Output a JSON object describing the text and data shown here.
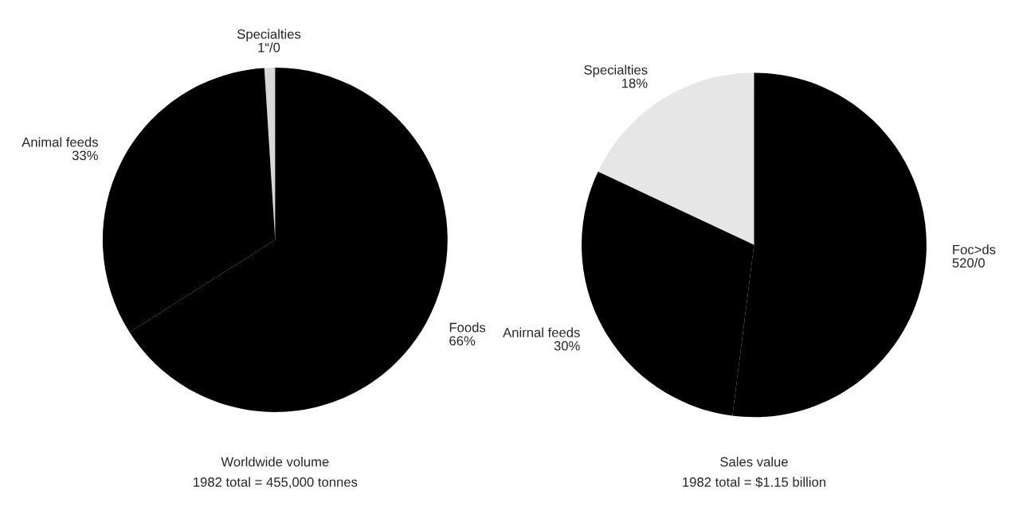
{
  "chart_data": [
    {
      "type": "pie",
      "title": "Worldwide volume",
      "subtitle": "1982 total = 455,000 tonnes",
      "categories": [
        "Specialties",
        "Animal feeds",
        "Foods"
      ],
      "values": [
        1,
        33,
        66
      ],
      "value_labels": [
        "1“/0",
        "33%",
        "66%"
      ],
      "colors": [
        "#d8d8d8",
        "#000000",
        "#000000"
      ]
    },
    {
      "type": "pie",
      "title": "Sales value",
      "subtitle": "1982 total = $1.15 billion",
      "categories": [
        "Specialties",
        "Anirnal feeds",
        "Foc>ds"
      ],
      "values": [
        18,
        30,
        52
      ],
      "value_labels": [
        "18%",
        "30%",
        "520/0"
      ],
      "colors": [
        "#e6e6e6",
        "#000000",
        "#000000"
      ]
    }
  ]
}
